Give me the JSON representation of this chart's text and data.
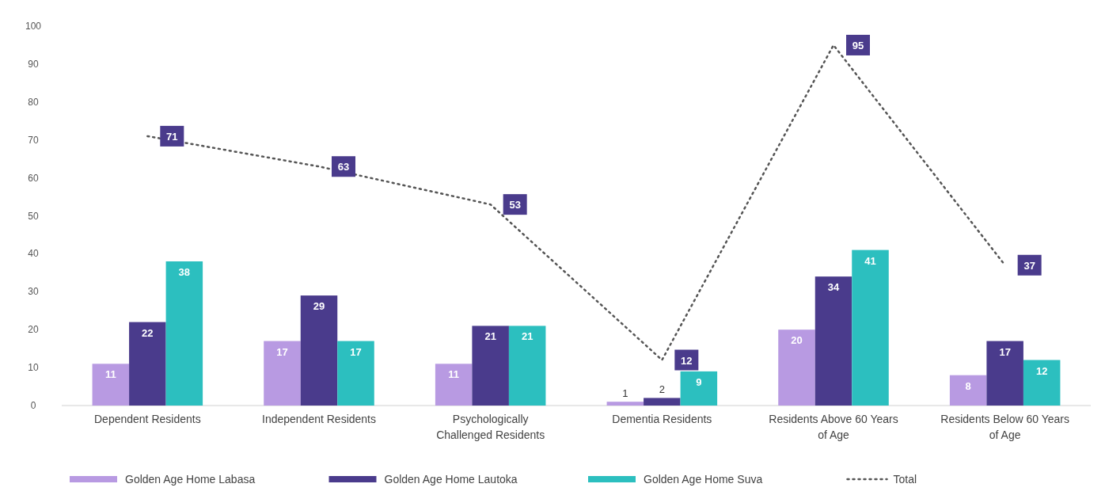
{
  "chart_data": {
    "type": "bar",
    "categories": [
      "Dependent Residents",
      "Independent Residents",
      "Psychologically Challenged Residents",
      "Dementia Residents",
      "Residents Above 60 Years of Age",
      "Residents Below 60 Years of Age"
    ],
    "series": [
      {
        "name": "Golden Age Home Labasa",
        "color": "#b89ae2",
        "values": [
          11,
          17,
          11,
          1,
          20,
          8
        ]
      },
      {
        "name": "Golden Age Home Lautoka",
        "color": "#4a3b8c",
        "values": [
          22,
          29,
          21,
          2,
          34,
          17
        ]
      },
      {
        "name": "Golden Age Home Suva",
        "color": "#2cbfbf",
        "values": [
          38,
          17,
          21,
          9,
          41,
          12
        ]
      },
      {
        "name": "Total",
        "type": "line",
        "color": "#555555",
        "line_style": "dotted",
        "marker": "none",
        "values": [
          71,
          63,
          53,
          12,
          95,
          37
        ]
      }
    ],
    "ylim": [
      0,
      100
    ],
    "yticks": [
      0,
      10,
      20,
      30,
      40,
      50,
      60,
      70,
      80,
      90,
      100
    ],
    "grid": false,
    "legend": "bottom",
    "data_labels": true
  }
}
